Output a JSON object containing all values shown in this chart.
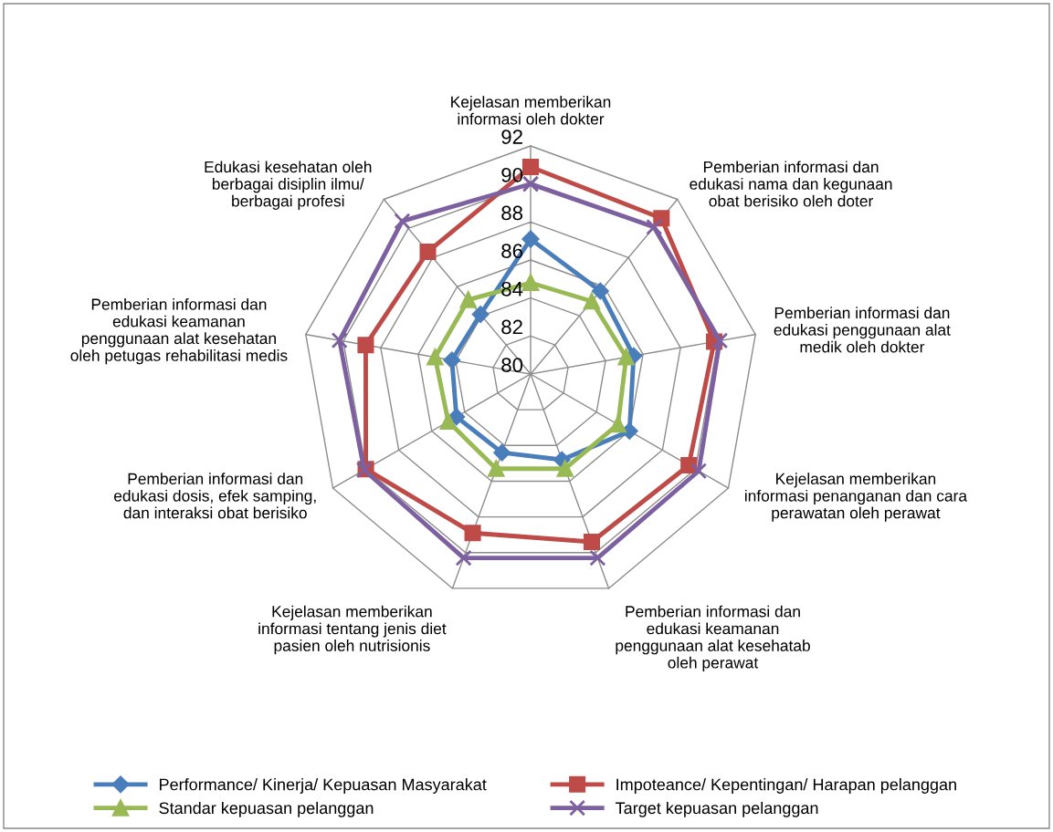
{
  "chart_data": {
    "type": "radar",
    "categories": [
      "Kejelasan memberikan\ninformasi oleh dokter",
      "Pemberian informasi dan\nedukasi nama dan kegunaan\nobat berisiko oleh doter",
      "Pemberian informasi dan\nedukasi penggunaan alat\nmedik oleh dokter",
      "Kejelasan memberikan\ninformasi penanganan dan cara\nperawatan oleh perawat",
      "Pemberian informasi dan\nedukasi keamanan\npenggunaan alat kesehatab\noleh perawat",
      "Kejelasan memberikan\ninformasi tentang jenis diet\npasien oleh nutrisionis",
      "Pemberian informasi dan\nedukasi dosis, efek samping,\ndan interaksi obat berisiko",
      "Pemberian informasi dan\nedukasi keamanan\npenggunaan alat kesehatan\noleh petugas rehabilitasi medis",
      "Edukasi kesehatan oleh\nberbagai disiplin ilmu/\nberbagai profesi"
    ],
    "series": [
      {
        "name": "Performance/ Kinerja/ Kepuasan Masyarakat",
        "color": "#4a7ebb",
        "marker": "diamond",
        "values": [
          87.1,
          85.7,
          85.5,
          86.0,
          84.8,
          84.4,
          84.5,
          84.2,
          84.1
        ]
      },
      {
        "name": "Impoteance/ Kepentingan/ Harapan pelanggan",
        "color": "#be4b48",
        "marker": "square",
        "values": [
          90.9,
          90.7,
          89.8,
          89.6,
          89.4,
          88.9,
          90.0,
          88.8,
          88.4
        ]
      },
      {
        "name": "Standar kepuasan pelanggan",
        "color": "#98b954",
        "marker": "triangle",
        "values": [
          84.8,
          85.0,
          85.1,
          85.3,
          85.3,
          85.3,
          85.0,
          85.1,
          85.1
        ]
      },
      {
        "name": "Target kepuasan pelanggan",
        "color": "#7d60a0",
        "marker": "cross",
        "values": [
          90.0,
          90.1,
          90.1,
          90.2,
          90.3,
          90.3,
          90.1,
          90.2,
          90.5
        ]
      }
    ],
    "ylim": [
      80,
      92
    ],
    "yticks": [
      80,
      82,
      84,
      86,
      88,
      90,
      92
    ],
    "grid": true,
    "legend": "bottom"
  }
}
